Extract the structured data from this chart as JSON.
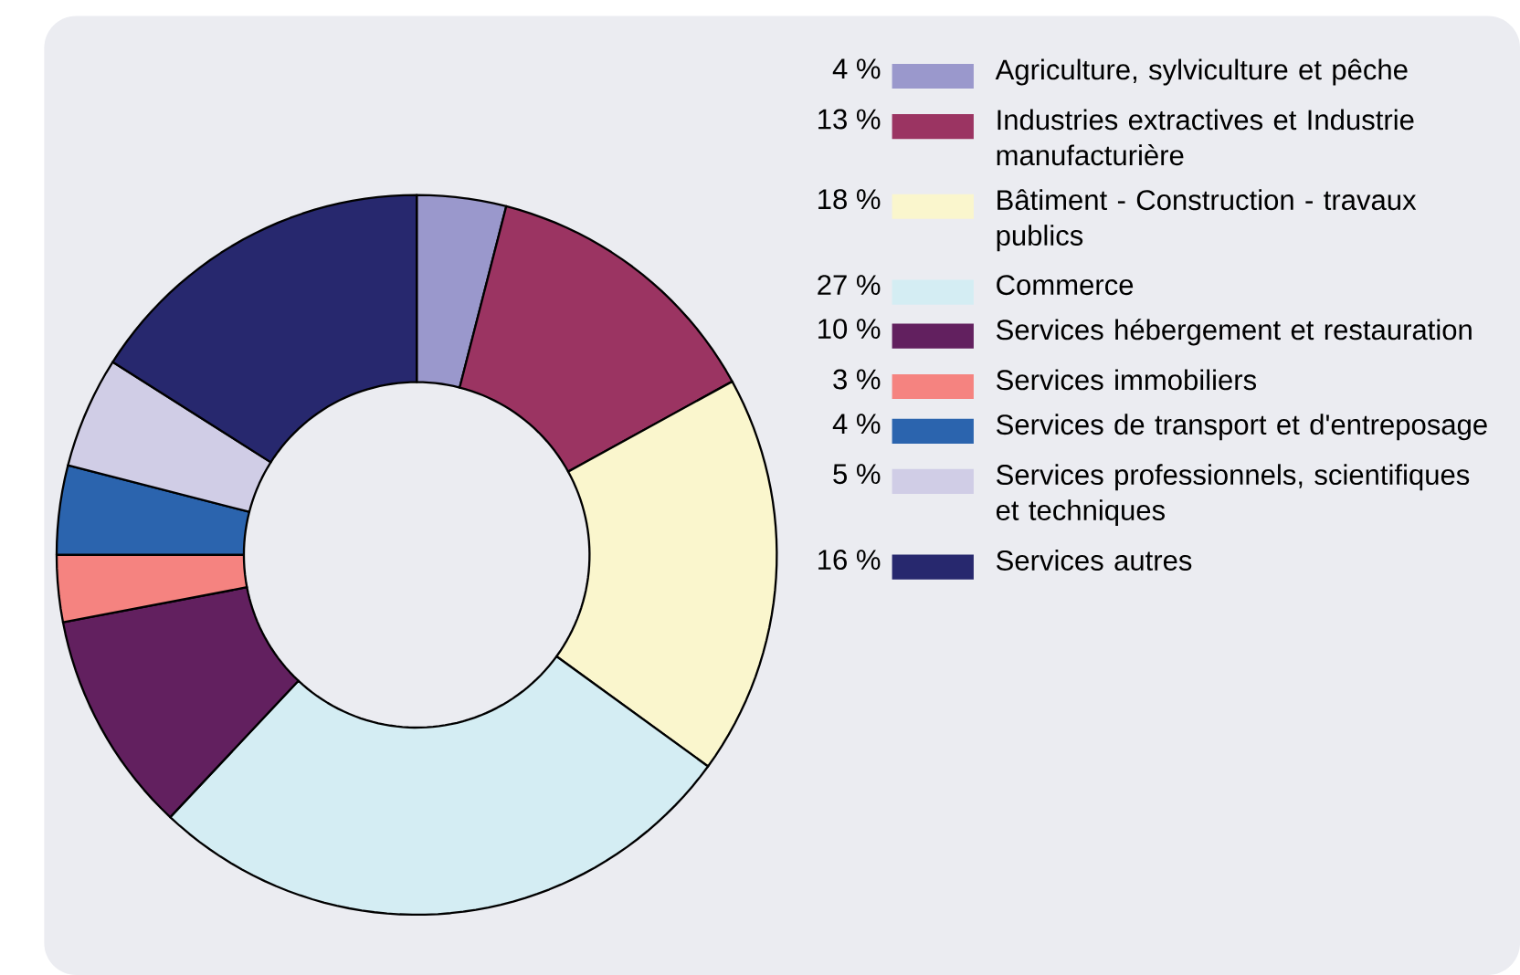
{
  "chart_data": {
    "type": "donut",
    "legend": "right",
    "categories": [
      "Agriculture, sylviculture et pêche",
      "Industries extractives et Industrie manufacturière",
      "Bâtiment - Construction - travaux publics",
      "Commerce",
      "Services hébergement et restauration",
      "Services immobiliers",
      "Services de transport et d'entreposage",
      "Services professionnels, scientifiques et techniques",
      "Services autres"
    ],
    "values": [
      4,
      13,
      18,
      27,
      10,
      3,
      4,
      5,
      16
    ],
    "value_labels": [
      "4 %",
      "13 %",
      "18 %",
      "27 %",
      "10 %",
      "3 %",
      "4 %",
      "5 %",
      "16 %"
    ],
    "colors": [
      "#9a98cc",
      "#9b3462",
      "#faf6cd",
      "#d4edf3",
      "#62205f",
      "#f58380",
      "#2b64ae",
      "#d0cde6",
      "#27286e"
    ]
  }
}
